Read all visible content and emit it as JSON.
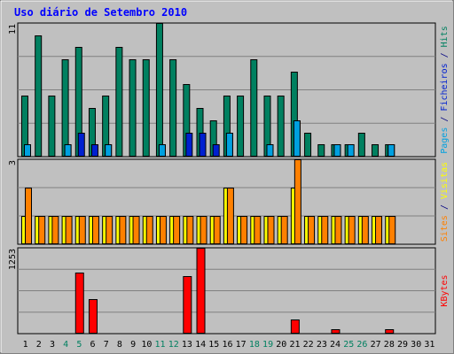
{
  "chart_data": {
    "type": "bar",
    "title": "Uso diário de Setembro 2010",
    "categories": [
      "1",
      "2",
      "3",
      "4",
      "5",
      "6",
      "7",
      "8",
      "9",
      "10",
      "11",
      "12",
      "13",
      "14",
      "15",
      "16",
      "17",
      "18",
      "19",
      "20",
      "21",
      "22",
      "23",
      "24",
      "25",
      "26",
      "27",
      "28",
      "29",
      "30",
      "31"
    ],
    "weekend_days": [
      4,
      5,
      11,
      12,
      18,
      19,
      25,
      26
    ],
    "panels": [
      {
        "id": "requests",
        "ymax": 11,
        "ymax_label": "11",
        "axis_labels": [
          {
            "text": "Pages",
            "color": "#00a0e0"
          },
          {
            "text": " / ",
            "color": "#000080"
          },
          {
            "text": "Ficheiros",
            "color": "#0020d0"
          },
          {
            "text": " / ",
            "color": "#000080"
          },
          {
            "text": "Hits",
            "color": "#008060"
          }
        ],
        "series": [
          {
            "name": "Hits",
            "color": "#008060",
            "values": [
              5,
              10,
              5,
              8,
              9,
              4,
              5,
              9,
              8,
              8,
              11,
              8,
              6,
              4,
              3,
              5,
              5,
              8,
              5,
              5,
              7,
              2,
              1,
              1,
              1,
              2,
              1,
              1,
              0,
              0,
              0
            ]
          },
          {
            "name": "Ficheiros",
            "color": "#0020d0",
            "values": [
              1,
              0,
              0,
              1,
              2,
              1,
              1,
              0,
              0,
              0,
              1,
              0,
              2,
              2,
              1,
              2,
              0,
              0,
              1,
              0,
              3,
              0,
              0,
              1,
              0,
              0,
              0,
              1,
              0,
              0,
              0
            ]
          },
          {
            "name": "Pages",
            "color": "#00a0e0",
            "values": [
              1,
              0,
              0,
              1,
              0,
              0,
              1,
              0,
              0,
              0,
              1,
              0,
              0,
              0,
              0,
              2,
              0,
              0,
              1,
              0,
              3,
              0,
              0,
              1,
              1,
              0,
              0,
              1,
              0,
              0,
              0
            ]
          }
        ]
      },
      {
        "id": "visits",
        "ymax": 3,
        "ymax_label": "3",
        "axis_labels": [
          {
            "text": "Sites",
            "color": "#ff8000"
          },
          {
            "text": " / ",
            "color": "#000080"
          },
          {
            "text": "Visitas",
            "color": "#ffff00"
          }
        ],
        "series": [
          {
            "name": "Visitas",
            "color": "#ffff00",
            "values": [
              1,
              1,
              1,
              1,
              1,
              1,
              1,
              1,
              1,
              1,
              1,
              1,
              1,
              1,
              1,
              2,
              1,
              1,
              1,
              1,
              2,
              1,
              1,
              1,
              1,
              1,
              1,
              1,
              0,
              0,
              0
            ]
          },
          {
            "name": "Sites",
            "color": "#ff8000",
            "values": [
              2,
              1,
              1,
              1,
              1,
              1,
              1,
              1,
              1,
              1,
              1,
              1,
              1,
              1,
              1,
              2,
              1,
              1,
              1,
              1,
              3,
              1,
              1,
              1,
              1,
              1,
              1,
              1,
              0,
              0,
              0
            ]
          }
        ]
      },
      {
        "id": "kbytes",
        "ymax": 1253,
        "ymax_label": "1253",
        "axis_labels": [
          {
            "text": "KBytes",
            "color": "#ff0000"
          }
        ],
        "series": [
          {
            "name": "KBytes",
            "color": "#ff0000",
            "values": [
              0,
              0,
              0,
              10,
              885,
              500,
              10,
              0,
              0,
              0,
              10,
              0,
              835,
              1253,
              10,
              10,
              0,
              0,
              10,
              0,
              210,
              0,
              0,
              70,
              0,
              0,
              0,
              70,
              0,
              0,
              0
            ]
          }
        ]
      }
    ]
  }
}
